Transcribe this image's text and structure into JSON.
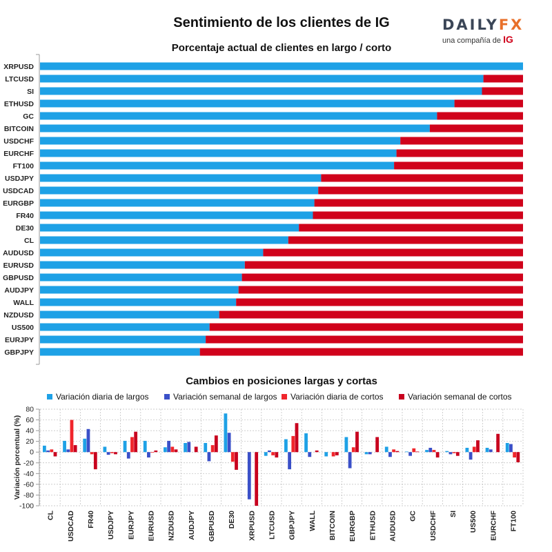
{
  "header": {
    "title": "Sentimiento de los clientes de IG",
    "brand_word_main": "DAILY",
    "brand_word_accent": "FX",
    "brand_sub": "una compañía de",
    "brand_sub_ig": "IG"
  },
  "chart_data": [
    {
      "type": "bar",
      "orientation": "horizontal",
      "stacked": true,
      "title": "Porcentaje actual de clientes en largo / corto",
      "categories": [
        "XRPUSD",
        "LTCUSD",
        "SI",
        "ETHUSD",
        "GC",
        "BITCOIN",
        "USDCHF",
        "EURCHF",
        "FT100",
        "USDJPY",
        "USDCAD",
        "EURGBP",
        "FR40",
        "DE30",
        "CL",
        "AUDUSD",
        "EURUSD",
        "GBPUSD",
        "AUDJPY",
        "WALL",
        "NZDUSD",
        "US500",
        "EURJPY",
        "GBPJPY"
      ],
      "series": [
        {
          "name": "largo",
          "color": "#1ea1e6",
          "values": [
            100,
            91.8,
            91.5,
            85.8,
            82.2,
            80.7,
            74.6,
            73.8,
            73.3,
            58.2,
            57.6,
            56.8,
            56.5,
            53.6,
            51.4,
            46.2,
            42.4,
            41.8,
            41.1,
            40.6,
            37.1,
            35.1,
            34.3,
            33.1
          ]
        },
        {
          "name": "corto",
          "color": "#d0021b",
          "values": [
            0,
            8.2,
            8.5,
            14.2,
            17.8,
            19.3,
            25.4,
            26.2,
            26.7,
            41.8,
            42.4,
            43.2,
            43.5,
            46.4,
            48.6,
            53.8,
            57.6,
            58.2,
            58.9,
            59.4,
            62.9,
            64.9,
            65.7,
            66.9
          ]
        }
      ],
      "xlim": [
        0,
        100
      ]
    },
    {
      "type": "bar",
      "title": "Cambios en posiciones largas y cortas",
      "ylabel": "Variación porcentual (%)",
      "ylim": [
        -100,
        80
      ],
      "yticks": [
        80,
        60,
        40,
        20,
        0,
        -20,
        -40,
        -60,
        -80,
        -100
      ],
      "legend_position": "top",
      "categories": [
        "CL",
        "USDCAD",
        "FR40",
        "USDJPY",
        "EURJPY",
        "EURUSD",
        "NZDUSD",
        "AUDJPY",
        "GBPUSD",
        "DE30",
        "XRPUSD",
        "LTCUSD",
        "GBPJPY",
        "WALL",
        "BITCOIN",
        "EURGBP",
        "ETHUSD",
        "AUDUSD",
        "GC",
        "USDCHF",
        "SI",
        "US500",
        "EURCHF",
        "FT100"
      ],
      "series": [
        {
          "name": "Variación diaria de largos",
          "color": "#1ea1e6",
          "values": [
            12,
            21,
            25,
            10,
            21,
            21,
            9,
            17,
            17,
            72,
            0,
            -7,
            24,
            35,
            -8,
            28,
            -4,
            10,
            1,
            4,
            2,
            8,
            8,
            17
          ]
        },
        {
          "name": "Variación semanal de largos",
          "color": "#3a50c8",
          "values": [
            3,
            5,
            43,
            -5,
            -12,
            -10,
            21,
            19,
            -17,
            36,
            -88,
            3,
            -32,
            -9,
            0,
            -30,
            -4,
            -9,
            -7,
            8,
            -4,
            -14,
            5,
            15
          ]
        },
        {
          "name": "Variación diaria de cortos",
          "color": "#f0262c",
          "values": [
            5,
            60,
            -4,
            -2,
            28,
            -1,
            10,
            0,
            13,
            -18,
            0,
            -6,
            30,
            0,
            -8,
            9,
            0,
            5,
            7,
            4,
            -2,
            10,
            0,
            -10
          ]
        },
        {
          "name": "Variación semanal de cortos",
          "color": "#c8001e",
          "values": [
            -8,
            13,
            -32,
            -4,
            38,
            3,
            5,
            10,
            31,
            -33,
            -100,
            -10,
            54,
            3,
            -6,
            38,
            28,
            2,
            1,
            -10,
            -7,
            22,
            34,
            -19
          ]
        }
      ]
    }
  ]
}
